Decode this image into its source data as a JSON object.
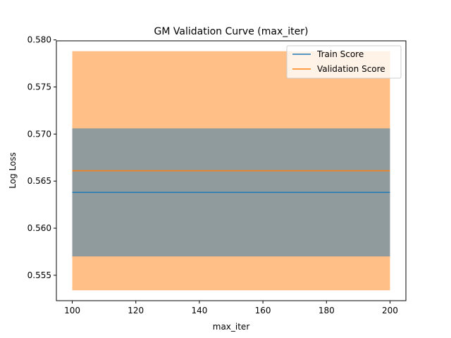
{
  "chart_data": {
    "type": "line",
    "title": "GM Validation Curve (max_iter)",
    "xlabel": "max_iter",
    "ylabel": "Log Loss",
    "xlim": [
      95,
      205
    ],
    "ylim": [
      0.5523,
      0.5799
    ],
    "xticks": [
      100,
      120,
      140,
      160,
      180,
      200
    ],
    "yticks": [
      0.555,
      0.56,
      0.565,
      0.57,
      0.575,
      0.58
    ],
    "ytick_labels": [
      "0.555",
      "0.560",
      "0.565",
      "0.570",
      "0.575",
      "0.580"
    ],
    "grid": false,
    "legend_position": "top-right",
    "series": [
      {
        "name": "Train Score",
        "color": "#1f77b4",
        "x": [
          100,
          200
        ],
        "y": [
          0.5638,
          0.5638
        ],
        "band": [
          0.557,
          0.5706
        ],
        "band_color": "#1f77b4"
      },
      {
        "name": "Validation Score",
        "color": "#ff7f0e",
        "x": [
          100,
          200
        ],
        "y": [
          0.5661,
          0.5661
        ],
        "band": [
          0.5534,
          0.5788
        ],
        "band_color": "#ff7f0e"
      }
    ]
  }
}
